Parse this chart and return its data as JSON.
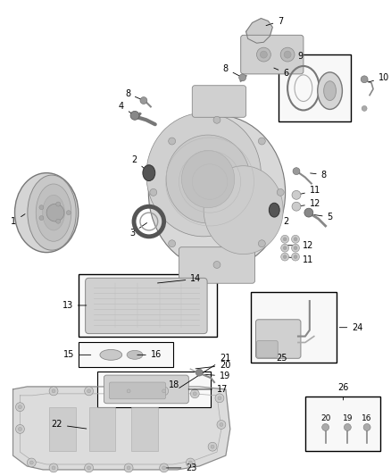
{
  "bg_color": "#ffffff",
  "fig_width": 4.38,
  "fig_height": 5.33,
  "dpi": 100,
  "line_color": "#000000",
  "gray_dark": "#555555",
  "gray_mid": "#888888",
  "gray_light": "#cccccc",
  "gray_fill": "#e0e0e0",
  "box_fill": "#f8f8f8",
  "font_size": 7.0
}
